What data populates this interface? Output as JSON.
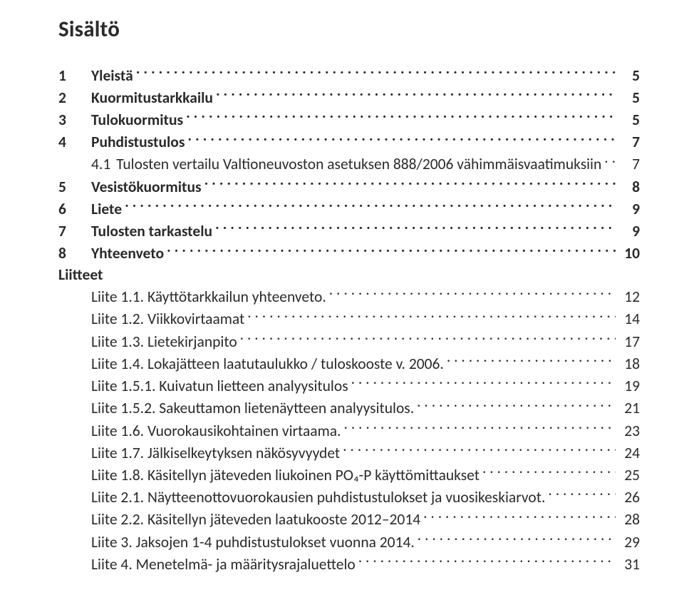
{
  "heading": "Sisältö",
  "entries": [
    {
      "num": "1",
      "label": "Yleistä",
      "page": "5",
      "bold": true,
      "indent": false
    },
    {
      "num": "2",
      "label": "Kuormitustarkkailu",
      "page": "5",
      "bold": true,
      "indent": false
    },
    {
      "num": "3",
      "label": "Tulokuormitus",
      "page": "5",
      "bold": true,
      "indent": false
    },
    {
      "num": "4",
      "label": "Puhdistustulos",
      "page": "7",
      "bold": true,
      "indent": false
    },
    {
      "num": "4.1",
      "label": "Tulosten vertailu Valtioneuvoston asetuksen 888/2006 vähimmäisvaatimuksiin",
      "page": "7",
      "bold": false,
      "indent": true
    },
    {
      "num": "5",
      "label": "Vesistökuormitus",
      "page": "8",
      "bold": true,
      "indent": false
    },
    {
      "num": "6",
      "label": "Liete",
      "page": "9",
      "bold": true,
      "indent": false
    },
    {
      "num": "7",
      "label": "Tulosten tarkastelu",
      "page": "9",
      "bold": true,
      "indent": false
    },
    {
      "num": "8",
      "label": "Yhteenveto",
      "page": "10",
      "bold": true,
      "indent": false
    },
    {
      "num": "",
      "label": "Liitteet",
      "page": "",
      "bold": true,
      "indent": false,
      "noLeader": true
    },
    {
      "num": "",
      "label": "Liite 1.1. Käyttötarkkailun yhteenveto.",
      "page": "12",
      "bold": false,
      "indent": true
    },
    {
      "num": "",
      "label": "Liite 1.2. Viikkovirtaamat",
      "page": "14",
      "bold": false,
      "indent": true
    },
    {
      "num": "",
      "label": "Liite 1.3. Lietekirjanpito",
      "page": "17",
      "bold": false,
      "indent": true
    },
    {
      "num": "",
      "label": "Liite 1.4. Lokajätteen laatutaulukko / tuloskooste v. 2006.",
      "page": "18",
      "bold": false,
      "indent": true
    },
    {
      "num": "",
      "label": "Liite 1.5.1. Kuivatun lietteen analyysitulos",
      "page": "19",
      "bold": false,
      "indent": true
    },
    {
      "num": "",
      "label": "Liite 1.5.2. Sakeuttamon lietenäytteen analyysitulos.",
      "page": "21",
      "bold": false,
      "indent": true
    },
    {
      "num": "",
      "label": "Liite 1.6. Vuorokausikohtainen virtaama.",
      "page": "23",
      "bold": false,
      "indent": true
    },
    {
      "num": "",
      "label": "Liite 1.7. Jälkiselkeytyksen näkösyvyydet",
      "page": "24",
      "bold": false,
      "indent": true
    },
    {
      "num": "",
      "label": "Liite 1.8. Käsitellyn jäteveden liukoinen PO₄-P käyttömittaukset",
      "page": "25",
      "bold": false,
      "indent": true
    },
    {
      "num": "",
      "label": "Liite 2.1. Näytteenottovuorokausien puhdistustulokset ja vuosikeskiarvot.",
      "page": "26",
      "bold": false,
      "indent": true
    },
    {
      "num": "",
      "label": "Liite 2.2. Käsitellyn jäteveden laatukooste 2012–2014",
      "page": "28",
      "bold": false,
      "indent": true
    },
    {
      "num": "",
      "label": "Liite 3. Jaksojen 1-4 puhdistustulokset vuonna 2014.",
      "page": "29",
      "bold": false,
      "indent": true
    },
    {
      "num": "",
      "label": "Liite 4. Menetelmä- ja määritysrajaluettelo",
      "page": "31",
      "bold": false,
      "indent": true
    }
  ]
}
